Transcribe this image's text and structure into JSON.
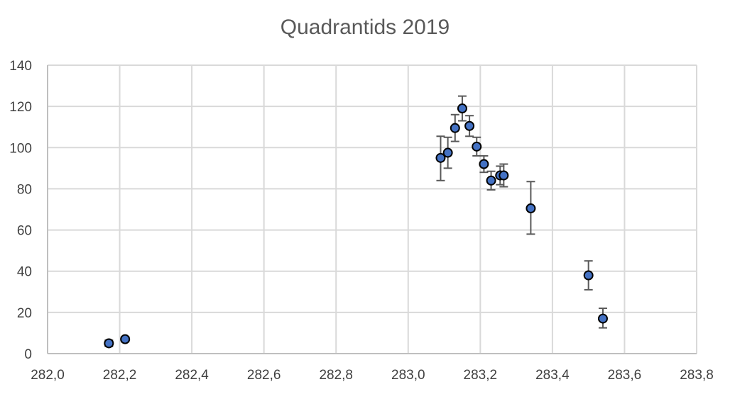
{
  "chart_data": {
    "type": "scatter",
    "title": "Quadrantids 2019",
    "xlabel": "",
    "ylabel": "",
    "xlim": [
      282.0,
      283.8
    ],
    "ylim": [
      0,
      140
    ],
    "x_ticks": [
      "282,0",
      "282,2",
      "282,4",
      "282,6",
      "282,8",
      "283,0",
      "283,2",
      "283,4",
      "283,6",
      "283,8"
    ],
    "y_ticks": [
      "0",
      "20",
      "40",
      "60",
      "80",
      "100",
      "120",
      "140"
    ],
    "grid": true,
    "legend": "none",
    "marker_color": "#4472c4",
    "series": [
      {
        "points": [
          {
            "x": 282.17,
            "y": 5,
            "err_low": 1.5,
            "err_high": 1.5
          },
          {
            "x": 282.215,
            "y": 7,
            "err_low": 1.2,
            "err_high": 1.2
          },
          {
            "x": 283.09,
            "y": 95,
            "err_low": 11,
            "err_high": 10.5
          },
          {
            "x": 283.11,
            "y": 97.5,
            "err_low": 7.5,
            "err_high": 7.5
          },
          {
            "x": 283.13,
            "y": 109.5,
            "err_low": 6.5,
            "err_high": 6.5
          },
          {
            "x": 283.15,
            "y": 119,
            "err_low": 6,
            "err_high": 6
          },
          {
            "x": 283.17,
            "y": 110.5,
            "err_low": 5,
            "err_high": 5
          },
          {
            "x": 283.19,
            "y": 100.5,
            "err_low": 4.5,
            "err_high": 4.5
          },
          {
            "x": 283.21,
            "y": 92,
            "err_low": 4,
            "err_high": 4
          },
          {
            "x": 283.23,
            "y": 84,
            "err_low": 4.5,
            "err_high": 4.5
          },
          {
            "x": 283.255,
            "y": 86.5,
            "err_low": 4.5,
            "err_high": 4.5
          },
          {
            "x": 283.265,
            "y": 86.5,
            "err_low": 5.5,
            "err_high": 5.5
          },
          {
            "x": 283.34,
            "y": 70.5,
            "err_low": 12.5,
            "err_high": 13
          },
          {
            "x": 283.5,
            "y": 38,
            "err_low": 7,
            "err_high": 7
          },
          {
            "x": 283.54,
            "y": 17,
            "err_low": 4.5,
            "err_high": 5
          }
        ]
      }
    ]
  }
}
